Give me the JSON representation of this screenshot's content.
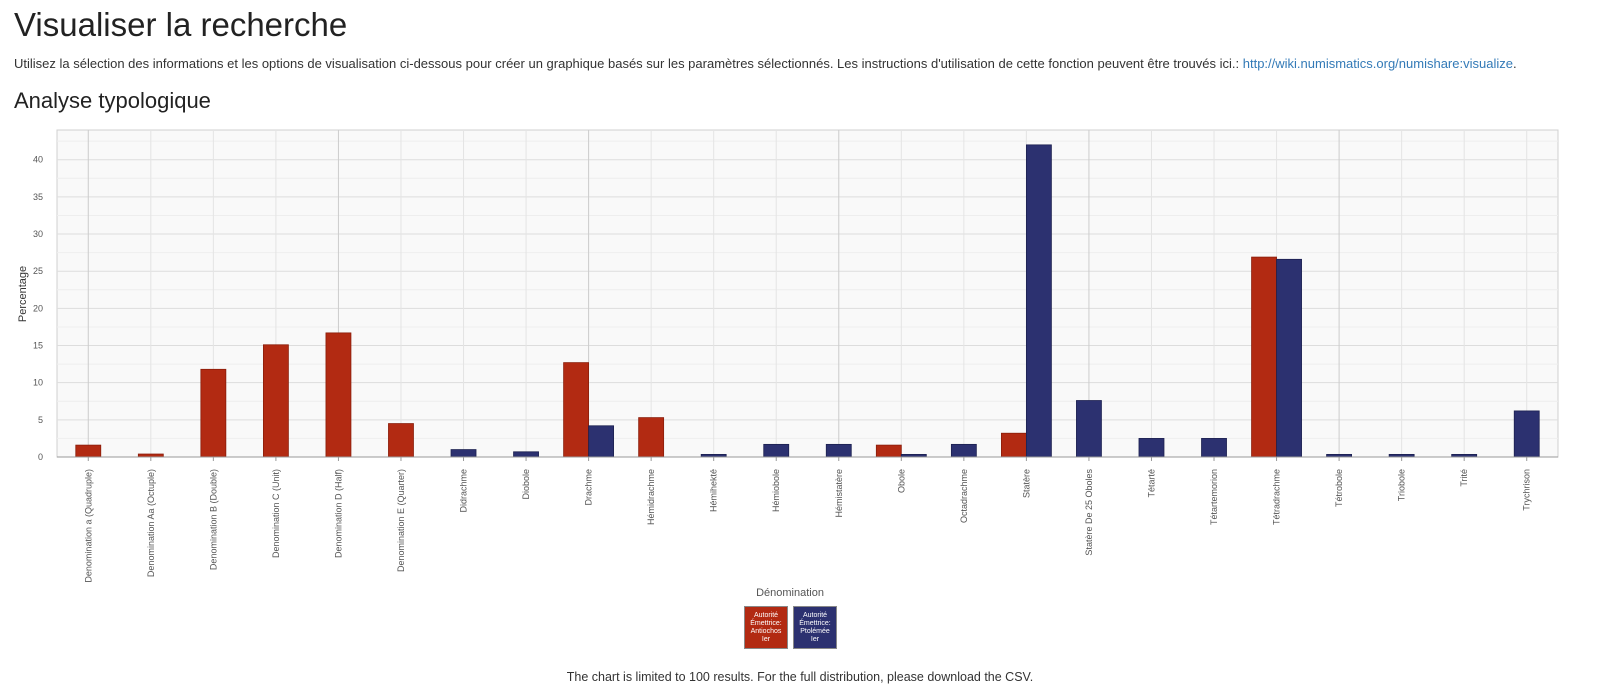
{
  "page": {
    "title": "Visualiser la recherche",
    "intro_text": "Utilisez la sélection des informations et les options de visualisation ci-dessous pour créer un graphique basés sur les paramètres sélectionnés. Les instructions d'utilisation de cette fonction peuvent être trouvés ici.: ",
    "intro_link": "http://wiki.numismatics.org/numishare:visualize",
    "intro_end": ".",
    "section_title": "Analyse typologique",
    "note": "The chart is limited to 100 results. For the full distribution, please download the CSV."
  },
  "chart_data": {
    "type": "bar",
    "xlabel": "Dénomination",
    "ylabel": "Percentage",
    "ylim": [
      0,
      44
    ],
    "yticks": [
      0,
      5,
      10,
      15,
      20,
      25,
      30,
      35,
      40
    ],
    "grid": true,
    "legend_position": "bottom-center",
    "categories": [
      "Denomination a (Quadruple)",
      "Denomination Aa (Octuple)",
      "Denomination B (Double)",
      "Denomination C (Unit)",
      "Denomination D (Half)",
      "Denomination E (Quarter)",
      "Didrachme",
      "Diobole",
      "Drachme",
      "Hémidrachme",
      "Hémihekté",
      "Hémiobole",
      "Hémistatère",
      "Obole",
      "Octadrachme",
      "Statère",
      "Statère De 25 Oboles",
      "Tétarté",
      "Tétartemorion",
      "Tétradrachme",
      "Tétrobole",
      "Triobole",
      "Trité",
      "Trychrison"
    ],
    "series": [
      {
        "name": "Autorité Émettrice: Antiochos Ier",
        "color": "#b22a12",
        "values": [
          1.6,
          0.4,
          11.8,
          15.1,
          16.7,
          4.5,
          0,
          0,
          12.7,
          5.3,
          0,
          0,
          0,
          1.6,
          0,
          3.2,
          0,
          0,
          0,
          26.9,
          0,
          0,
          0,
          0
        ]
      },
      {
        "name": "Autorité Émettrice: Ptolémée Ier",
        "color": "#2c3170",
        "values": [
          0,
          0,
          0,
          0,
          0,
          0,
          1.0,
          0.7,
          4.2,
          0,
          0.35,
          1.7,
          1.7,
          0.35,
          1.7,
          42.0,
          7.6,
          2.5,
          2.5,
          26.6,
          0.35,
          0.35,
          0.35,
          6.2
        ]
      }
    ]
  }
}
